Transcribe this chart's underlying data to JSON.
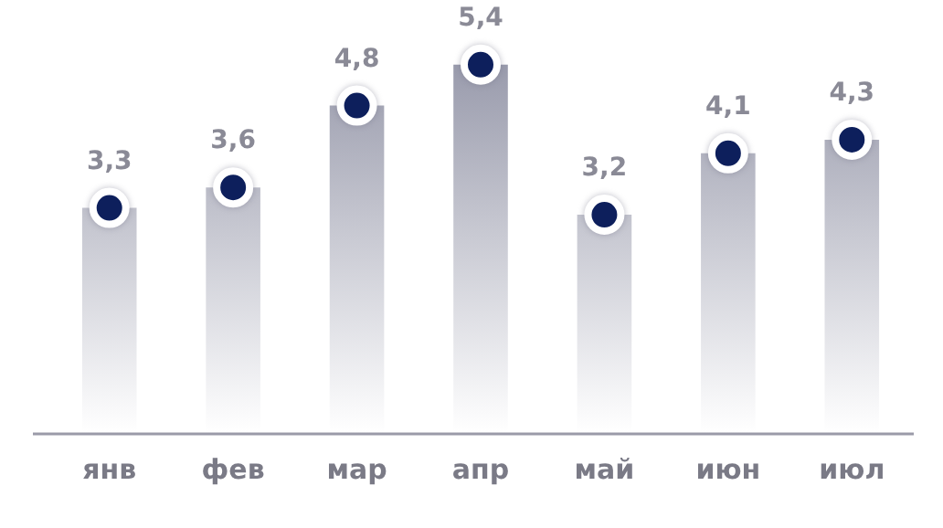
{
  "chart_data": {
    "type": "bar",
    "categories": [
      "янв",
      "фев",
      "мар",
      "апр",
      "май",
      "июн",
      "июл"
    ],
    "series": [
      {
        "color": "#8e90a3",
        "values": [
          3.3,
          3.6,
          4.8,
          5.4,
          3.2,
          4.1,
          4.3
        ],
        "value_labels": [
          "3,3",
          "3,6",
          "4,8",
          "5,4",
          "3,2",
          "4,1",
          "4,3"
        ]
      },
      {
        "type": "scatter",
        "color": "#0d1f5c",
        "marker": "circle",
        "x": [
          "янв",
          "фев",
          "мар",
          "апр",
          "май",
          "июн",
          "июл"
        ],
        "values": [
          3.3,
          3.6,
          4.8,
          5.4,
          3.2,
          4.1,
          4.3
        ]
      }
    ],
    "relative": false,
    "grid": false,
    "legend": false
  }
}
